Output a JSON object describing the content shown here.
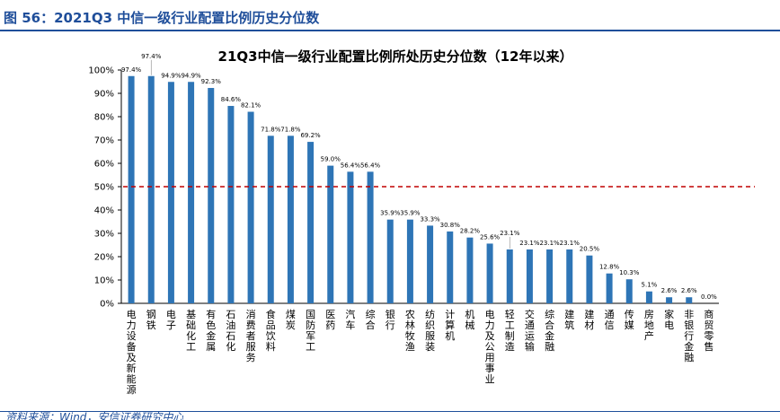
{
  "figure": {
    "label": "图 56：2021Q3 中信一级行业配置比例历史分位数",
    "source": "资料来源：Wind，安信证券研究中心"
  },
  "chart_data": {
    "type": "bar",
    "title": "21Q3中信一级行业配置比例所处历史分位数（12年以来）",
    "xlabel": "",
    "ylabel": "",
    "ylim": [
      0,
      100
    ],
    "yticks": [
      0,
      10,
      20,
      30,
      40,
      50,
      60,
      70,
      80,
      90,
      100
    ],
    "ytick_labels": [
      "0%",
      "10%",
      "20%",
      "30%",
      "40%",
      "50%",
      "60%",
      "70%",
      "80%",
      "90%",
      "100%"
    ],
    "categories": [
      "电力设备及新能源",
      "钢铁",
      "电子",
      "基础化工",
      "有色金属",
      "石油石化",
      "消费者服务",
      "食品饮料",
      "煤炭",
      "国防军工",
      "医药",
      "汽车",
      "综合",
      "银行",
      "农林牧渔",
      "纺织服装",
      "计算机",
      "机械",
      "电力及公用事业",
      "轻工制造",
      "交通运输",
      "综合金融",
      "建筑",
      "建材",
      "通信",
      "传媒",
      "房地产",
      "家电",
      "非银行金融",
      "商贸零售"
    ],
    "values": [
      97.4,
      97.4,
      94.9,
      94.9,
      92.3,
      84.6,
      82.1,
      71.8,
      71.8,
      69.2,
      59.0,
      56.4,
      56.4,
      35.9,
      35.9,
      33.3,
      30.8,
      28.2,
      25.6,
      23.1,
      23.1,
      23.1,
      23.1,
      20.5,
      12.8,
      10.3,
      5.1,
      2.6,
      2.6,
      0.0
    ],
    "value_labels": [
      "97.4%",
      "97.4%",
      "94.9%",
      "94.9%",
      "92.3%",
      "84.6%",
      "82.1%",
      "71.8%",
      "71.8%",
      "69.2%",
      "59.0%",
      "56.4%",
      "56.4%",
      "35.9%",
      "35.9%",
      "33.3%",
      "30.8%",
      "28.2%",
      "25.6%",
      "23.1%",
      "23.1%",
      "23.1%",
      "23.1%",
      "20.5%",
      "12.8%",
      "10.3%",
      "5.1%",
      "2.6%",
      "2.6%",
      "0.0%"
    ],
    "reference_line": {
      "value": 50,
      "style": "dashed"
    },
    "grid": false,
    "legend": "none",
    "colors": {
      "bar": "#2e75b6",
      "reference": "#c00000",
      "axis": "#000000"
    }
  }
}
